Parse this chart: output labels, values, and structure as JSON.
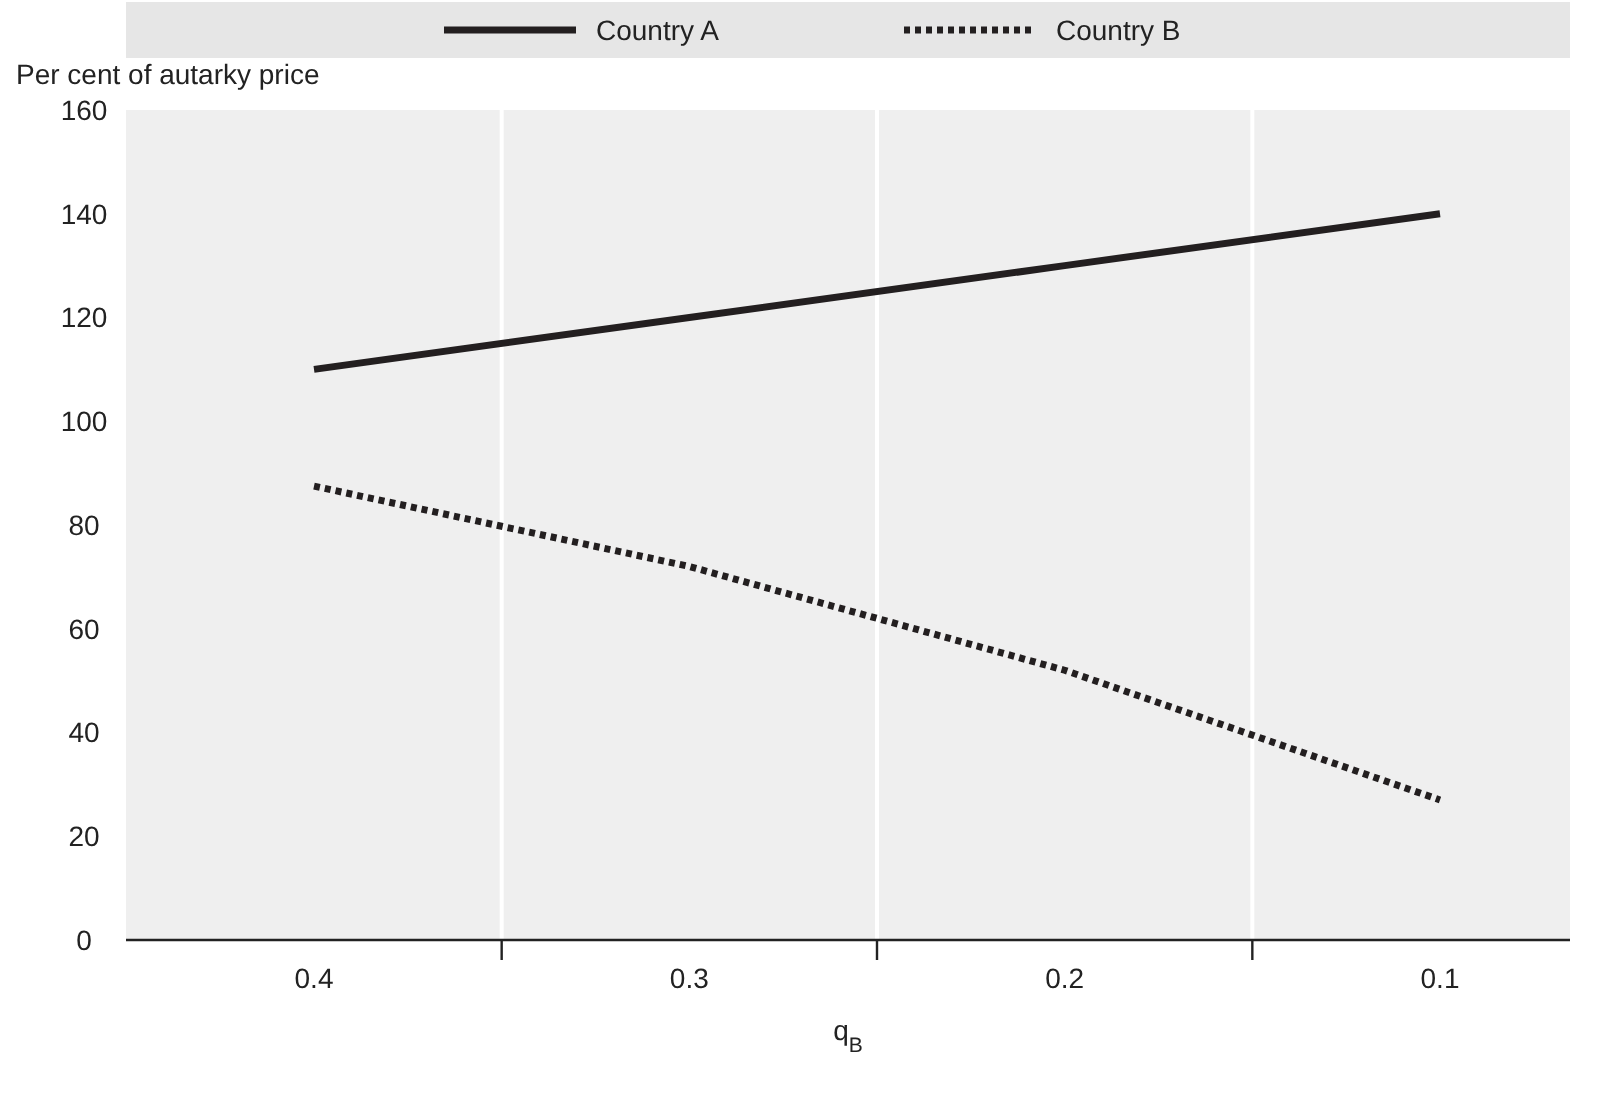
{
  "chart_data": {
    "type": "line",
    "ylabel": "Per cent of autarky price",
    "xlabel": "q$_{B}$",
    "categories": [
      "0.4",
      "0.3",
      "0.2",
      "0.1"
    ],
    "series": [
      {
        "name": "Country A",
        "color": "#231f20",
        "values": [
          110,
          120,
          130,
          140
        ],
        "line_style": "solid"
      },
      {
        "name": "Country B",
        "color": "#231f20",
        "values": [
          87.5,
          72,
          52,
          27
        ],
        "line_style": "dotted"
      }
    ],
    "ylim": [
      0,
      160
    ],
    "yticks": [
      0,
      20,
      40,
      60,
      80,
      100,
      120,
      140,
      160
    ],
    "grid": "x",
    "legend": "top"
  }
}
